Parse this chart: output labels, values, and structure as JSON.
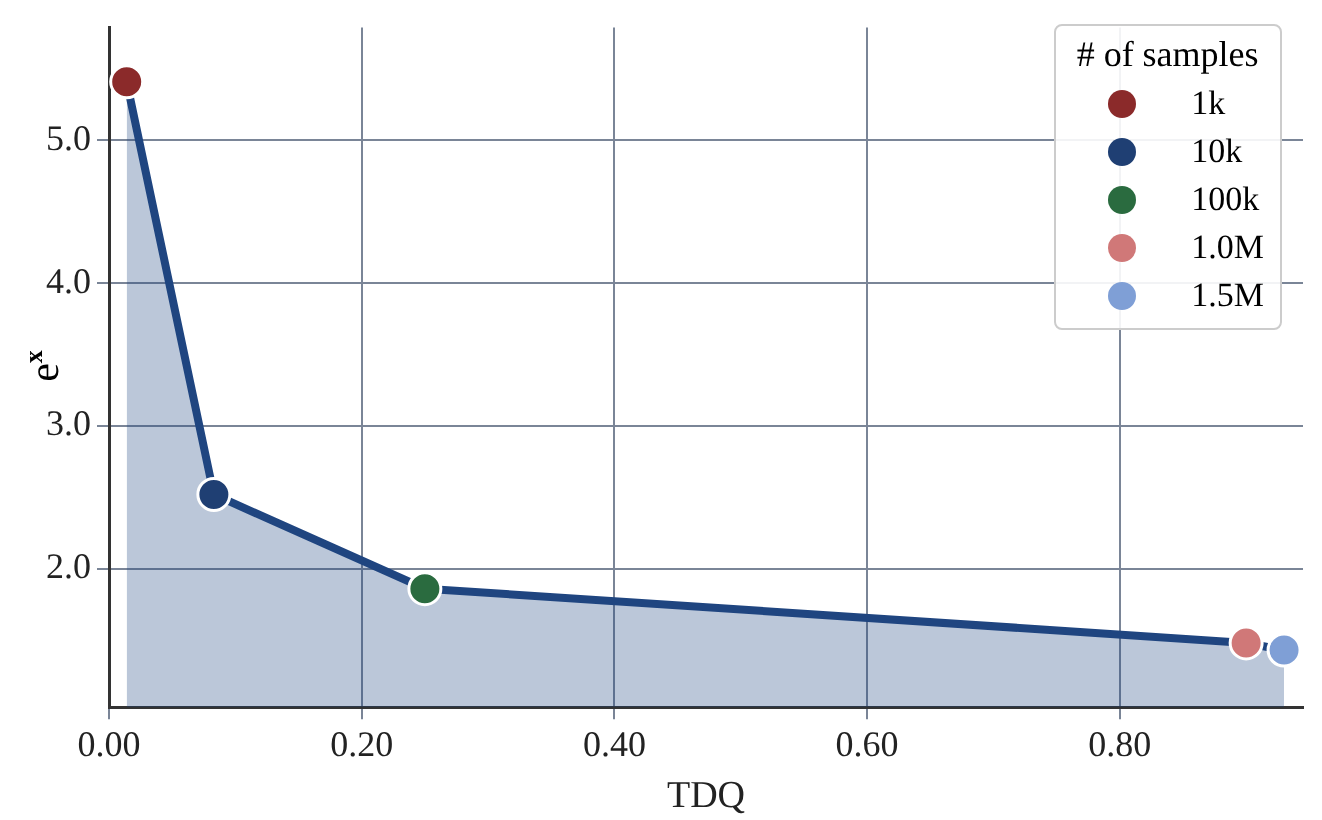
{
  "chart_data": {
    "type": "area",
    "xlabel": "TDQ",
    "ylabel": "e$^{x}$",
    "legend_title": "# of samples",
    "xlim": [
      0,
      0.945
    ],
    "ylim": [
      1.03,
      5.79
    ],
    "xticks": [
      {
        "value": 0,
        "label": "0.00"
      },
      {
        "value": 0.2,
        "label": "0.20"
      },
      {
        "value": 0.4,
        "label": "0.40"
      },
      {
        "value": 0.6,
        "label": "0.60"
      },
      {
        "value": 0.8,
        "label": "0.80"
      }
    ],
    "yticks": [
      {
        "value": 2,
        "label": "2.0"
      },
      {
        "value": 3,
        "label": "3.0"
      },
      {
        "value": 4,
        "label": "4.0"
      },
      {
        "value": 5,
        "label": "5.0"
      }
    ],
    "grid": true,
    "legend": "top right",
    "marker": "circle",
    "series": [
      {
        "marker": "none",
        "color": "#1f4580",
        "x": [
          0.014,
          0.083,
          0.25,
          0.9,
          0.93
        ],
        "values": [
          5.41,
          2.52,
          1.86,
          1.48,
          1.43
        ]
      },
      {
        "type": "scatter",
        "name": "1k",
        "color": "#8b2a2a",
        "x": [
          0.014
        ],
        "values": [
          5.41
        ]
      },
      {
        "type": "scatter",
        "name": "10k",
        "color": "#1f3f73",
        "x": [
          0.083
        ],
        "values": [
          2.52
        ]
      },
      {
        "type": "scatter",
        "name": "100k",
        "color": "#2a6b3f",
        "x": [
          0.25
        ],
        "values": [
          1.86
        ]
      },
      {
        "type": "scatter",
        "name": "1.0M",
        "color": "#d07878",
        "x": [
          0.9
        ],
        "values": [
          1.48
        ]
      },
      {
        "type": "scatter",
        "name": "1.5M",
        "color": "#7f9fd6",
        "x": [
          0.93
        ],
        "values": [
          1.43
        ]
      }
    ]
  }
}
